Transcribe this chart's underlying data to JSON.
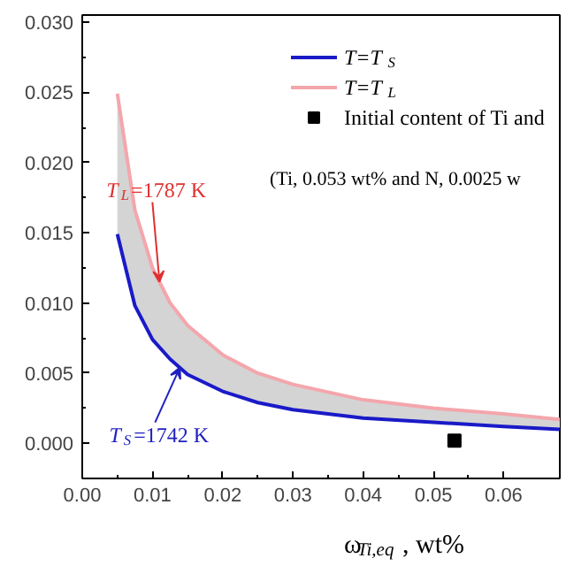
{
  "chart_data": {
    "type": "line",
    "xlabel": "ω$_{Ti,eq}$, wt%",
    "x": [
      0.005,
      0.0075,
      0.01,
      0.0125,
      0.015,
      0.02,
      0.025,
      0.03,
      0.04,
      0.05,
      0.06,
      0.068
    ],
    "series": [
      {
        "name": "T=T$_{S}$",
        "color": "#1a1ac8",
        "values": [
          0.0149,
          0.0098,
          0.0074,
          0.006,
          0.0049,
          0.0037,
          0.0029,
          0.0024,
          0.0018,
          0.0015,
          0.0012,
          0.001
        ]
      },
      {
        "name": "T=T$_{L}$",
        "color": "#f4a6ac",
        "values": [
          0.0249,
          0.0166,
          0.0125,
          0.01,
          0.0084,
          0.0063,
          0.005,
          0.0042,
          0.0031,
          0.0025,
          0.0021,
          0.0017
        ],
        "lower": [
          0.0149,
          0.0098,
          0.0074,
          0.006,
          0.0049,
          0.0037,
          0.0029,
          0.0024,
          0.0018,
          0.0015,
          0.0012,
          0.001
        ],
        "upper": [
          0.0249,
          0.0166,
          0.0125,
          0.01,
          0.0084,
          0.0063,
          0.005,
          0.0042,
          0.0031,
          0.0025,
          0.0021,
          0.0017
        ]
      },
      {
        "name": "Initial content of Ti and",
        "type": "scatter",
        "marker": "square",
        "color": "#000000",
        "x": [
          0.053
        ],
        "values": [
          0.0002
        ]
      }
    ],
    "annotations": [
      {
        "text": "T$_{L}$=1787 K",
        "x": 0.011,
        "y": 0.0115
      },
      {
        "text": "T$_{S}$=1742 K",
        "x": 0.0139,
        "y": 0.0054
      },
      "(Ti, 0.053 wt% and N, 0.0025 w"
    ],
    "xlim": [
      0,
      0.068
    ],
    "ylim": [
      -0.0025,
      0.0305
    ],
    "xticks": [
      {
        "value": 0,
        "label": "0.00"
      },
      {
        "value": 0.01,
        "label": "0.01"
      },
      {
        "value": 0.02,
        "label": "0.02"
      },
      {
        "value": 0.03,
        "label": "0.03"
      },
      {
        "value": 0.04,
        "label": "0.04"
      },
      {
        "value": 0.05,
        "label": "0.05"
      },
      {
        "value": 0.06,
        "label": "0.06"
      }
    ],
    "yticks": [
      {
        "value": 0,
        "label": "0.000"
      },
      {
        "value": 0.005,
        "label": "0.005"
      },
      {
        "value": 0.01,
        "label": "0.010"
      },
      {
        "value": 0.015,
        "label": "0.015"
      },
      {
        "value": 0.02,
        "label": "0.020"
      },
      {
        "value": 0.025,
        "label": "0.025"
      },
      {
        "value": 0.03,
        "label": "0.030"
      }
    ],
    "legend": "top right",
    "grid": false,
    "line_style": "solid"
  }
}
